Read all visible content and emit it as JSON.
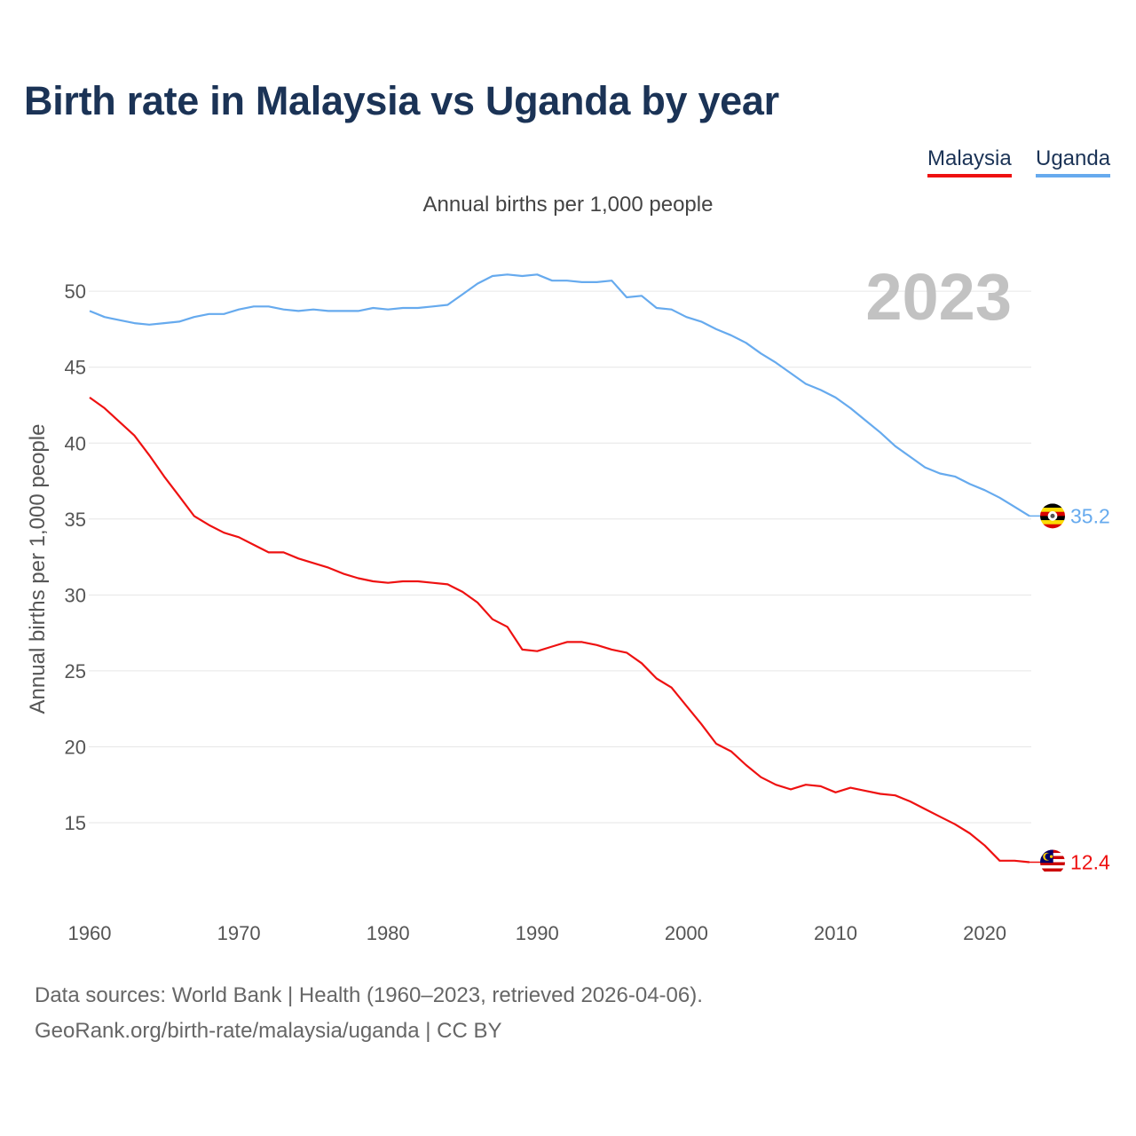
{
  "title": "Birth rate in Malaysia vs Uganda by year",
  "subtitle": "Annual births per 1,000 people",
  "footer": {
    "source": "Data sources: World Bank | Health (1960–2023, retrieved 2026-04-06).",
    "attribution": "GeoRank.org/birth-rate/malaysia/uganda | CC BY"
  },
  "legend": [
    {
      "name": "Malaysia",
      "color": "#ee1111"
    },
    {
      "name": "Uganda",
      "color": "#66aaee"
    }
  ],
  "chart_data": {
    "type": "line",
    "title": "Birth rate in Malaysia vs Uganda by year",
    "subtitle": "Annual births per 1,000 people",
    "xlabel": "",
    "ylabel": "Annual births per 1,000 people",
    "xlim": [
      1960,
      2023
    ],
    "ylim": [
      10,
      53
    ],
    "x_ticks": [
      1960,
      1970,
      1980,
      1990,
      2000,
      2010,
      2020
    ],
    "y_ticks": [
      15,
      20,
      25,
      30,
      35,
      40,
      45,
      50
    ],
    "grid": true,
    "year_watermark": "2023",
    "x": [
      1960,
      1961,
      1962,
      1963,
      1964,
      1965,
      1966,
      1967,
      1968,
      1969,
      1970,
      1971,
      1972,
      1973,
      1974,
      1975,
      1976,
      1977,
      1978,
      1979,
      1980,
      1981,
      1982,
      1983,
      1984,
      1985,
      1986,
      1987,
      1988,
      1989,
      1990,
      1991,
      1992,
      1993,
      1994,
      1995,
      1996,
      1997,
      1998,
      1999,
      2000,
      2001,
      2002,
      2003,
      2004,
      2005,
      2006,
      2007,
      2008,
      2009,
      2010,
      2011,
      2012,
      2013,
      2014,
      2015,
      2016,
      2017,
      2018,
      2019,
      2020,
      2021,
      2022,
      2023
    ],
    "series": [
      {
        "name": "Malaysia",
        "color": "#ee1111",
        "flag": "malaysia-flag",
        "end_label": "12.4",
        "values": [
          43.0,
          42.3,
          41.4,
          40.5,
          39.2,
          37.8,
          36.5,
          35.2,
          34.6,
          34.1,
          33.8,
          33.3,
          32.8,
          32.8,
          32.4,
          32.1,
          31.8,
          31.4,
          31.1,
          30.9,
          30.8,
          30.9,
          30.9,
          30.8,
          30.7,
          30.2,
          29.5,
          28.4,
          27.9,
          26.4,
          26.3,
          26.6,
          26.9,
          26.9,
          26.7,
          26.4,
          26.2,
          25.5,
          24.5,
          23.9,
          22.7,
          21.5,
          20.2,
          19.7,
          18.8,
          18.0,
          17.5,
          17.2,
          17.5,
          17.4,
          17.0,
          17.3,
          17.1,
          16.9,
          16.8,
          16.4,
          15.9,
          15.4,
          14.9,
          14.3,
          13.5,
          12.5,
          12.5,
          12.4
        ]
      },
      {
        "name": "Uganda",
        "color": "#66aaee",
        "flag": "uganda-flag",
        "end_label": "35.2",
        "values": [
          48.7,
          48.3,
          48.1,
          47.9,
          47.8,
          47.9,
          48.0,
          48.3,
          48.5,
          48.5,
          48.8,
          49.0,
          49.0,
          48.8,
          48.7,
          48.8,
          48.7,
          48.7,
          48.7,
          48.9,
          48.8,
          48.9,
          48.9,
          49.0,
          49.1,
          49.8,
          50.5,
          51.0,
          51.1,
          51.0,
          51.1,
          50.7,
          50.7,
          50.6,
          50.6,
          50.7,
          49.6,
          49.7,
          48.9,
          48.8,
          48.3,
          48.0,
          47.5,
          47.1,
          46.6,
          45.9,
          45.3,
          44.6,
          43.9,
          43.5,
          43.0,
          42.3,
          41.5,
          40.7,
          39.8,
          39.1,
          38.4,
          38.0,
          37.8,
          37.3,
          36.9,
          36.4,
          35.8,
          35.2
        ]
      }
    ]
  }
}
